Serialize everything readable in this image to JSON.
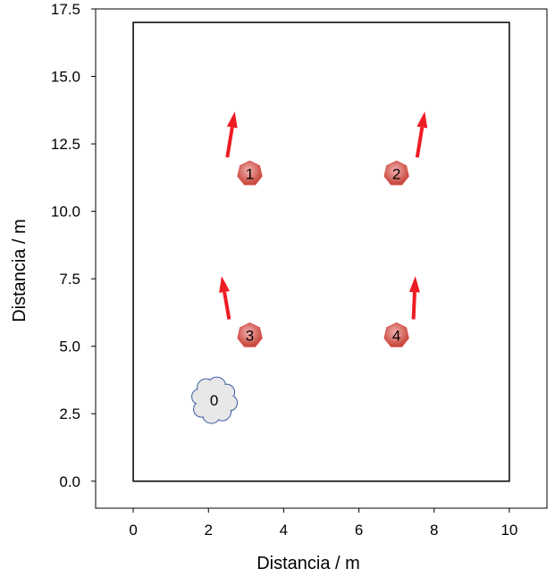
{
  "chart_data": {
    "type": "scatter",
    "xlabel": "Distancia / m",
    "ylabel": "Distancia / m",
    "xlim": [
      -1,
      11
    ],
    "ylim": [
      -1,
      17.5
    ],
    "x_ticks": [
      0,
      2,
      4,
      6,
      8,
      10
    ],
    "x_tick_labels": [
      "0",
      "2",
      "4",
      "6",
      "8",
      "10"
    ],
    "y_ticks": [
      0,
      2.5,
      5,
      7.5,
      10,
      12.5,
      15,
      17.5
    ],
    "y_tick_labels": [
      "0.0",
      "2.5",
      "5.0",
      "7.5",
      "10.0",
      "12.5",
      "15.0",
      "17.5"
    ],
    "grid": false,
    "boundary": {
      "x": [
        0,
        10
      ],
      "y": [
        0,
        17
      ]
    },
    "source": {
      "label": "0",
      "x": 2.15,
      "y": 3.0,
      "shape": "cloud",
      "color": "#e8e8e8"
    },
    "agents": [
      {
        "label": "1",
        "x": 3.1,
        "y": 11.4
      },
      {
        "label": "2",
        "x": 7.0,
        "y": 11.4
      },
      {
        "label": "3",
        "x": 3.1,
        "y": 5.4
      },
      {
        "label": "4",
        "x": 7.0,
        "y": 5.4
      }
    ],
    "agent_color": "#d9534f",
    "arrows": [
      {
        "x0": 2.5,
        "y0": 12.0,
        "x1": 2.7,
        "y1": 13.7
      },
      {
        "x0": 7.55,
        "y0": 12.0,
        "x1": 7.75,
        "y1": 13.7
      },
      {
        "x0": 2.55,
        "y0": 6.0,
        "x1": 2.35,
        "y1": 7.6
      },
      {
        "x0": 7.45,
        "y0": 6.0,
        "x1": 7.5,
        "y1": 7.6
      }
    ],
    "arrow_color": "#ee1c24"
  }
}
